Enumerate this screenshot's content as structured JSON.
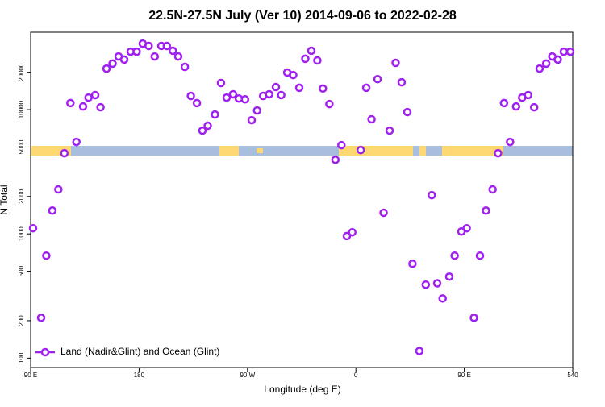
{
  "chart_data": {
    "type": "scatter",
    "title": "22.5N-27.5N July (Ver 10)   2014-09-06 to 2022-02-28",
    "x_label": "Longitude (deg E)",
    "y_label": "N Total",
    "log_y": true,
    "xlim": [
      90,
      540
    ],
    "ylim": [
      84,
      42000
    ],
    "xticks": [
      {
        "value": 90,
        "label": "90 E"
      },
      180,
      {
        "value": 270,
        "label": "90 W"
      },
      {
        "value": 360,
        "label": "0"
      },
      {
        "value": 450,
        "label": "90 E"
      },
      540
    ],
    "yticks": [
      100,
      200,
      500,
      1000,
      2000,
      5000,
      10000,
      20000
    ],
    "x": [
      92,
      98.7,
      103,
      108,
      113,
      118,
      123,
      128,
      133.5,
      138,
      143.6,
      148,
      153,
      158,
      163,
      167.7,
      173,
      178,
      183,
      188,
      193,
      198.5,
      203,
      208,
      212.5,
      218,
      223,
      228,
      232.6,
      237,
      243,
      248,
      252.7,
      258,
      262.8,
      268,
      273.5,
      278,
      283,
      288,
      293.6,
      298,
      303,
      308,
      313,
      318,
      323,
      328,
      332.6,
      338,
      343,
      348,
      352.5,
      357,
      364,
      368.6,
      373,
      378,
      383,
      388,
      393,
      398,
      402.7,
      407,
      412.7,
      418,
      423,
      427.5,
      432,
      437.5,
      442,
      447.6,
      452,
      458,
      463,
      468,
      473.5,
      478,
      483,
      488,
      493,
      498,
      503,
      508,
      512.5,
      518,
      523,
      527.6,
      532.6,
      538
    ],
    "series": [
      {
        "name": "Land (Nadir&Glint) and Ocean (Glint)",
        "color": "#a020f0",
        "values": [
          1110,
          211,
          668,
          1540,
          2280,
          4460,
          11300,
          5500,
          10600,
          12500,
          13100,
          10450,
          21400,
          23500,
          26800,
          25300,
          29300,
          29300,
          34000,
          32600,
          26800,
          32600,
          32600,
          29800,
          26800,
          22100,
          12900,
          11300,
          6780,
          7420,
          9140,
          16400,
          12500,
          13300,
          12300,
          12100,
          8230,
          9850,
          12900,
          13300,
          15200,
          13100,
          19900,
          19000,
          15000,
          25700,
          29800,
          24900,
          14800,
          11100,
          3950,
          5180,
          960,
          1030,
          4730,
          15000,
          8360,
          17600,
          1480,
          6780,
          23800,
          16600,
          9560,
          575,
          114,
          390,
          2050,
          400,
          302,
          453,
          668,
          1045,
          1110,
          211,
          668,
          1540,
          2280,
          4460,
          11300,
          5500,
          10600,
          12500,
          13100,
          10450,
          21400,
          23500,
          26800,
          25300,
          29300,
          29300
        ]
      }
    ]
  }
}
